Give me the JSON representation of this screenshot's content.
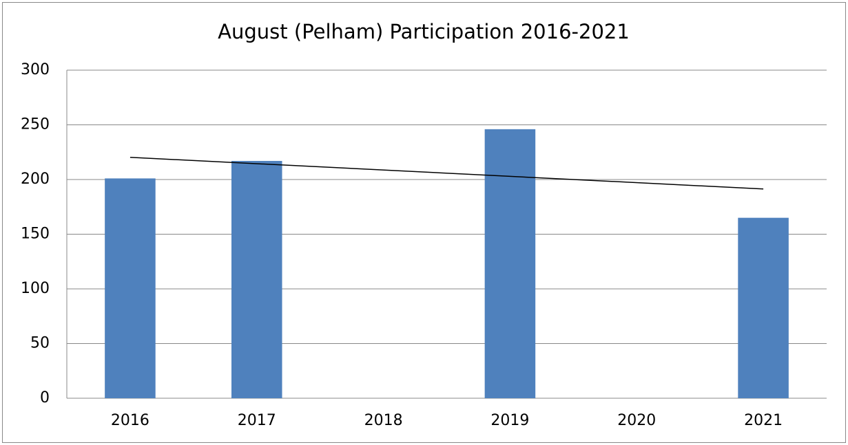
{
  "chart_data": {
    "type": "bar",
    "title": "August (Pelham) Participation 2016-2021",
    "categories": [
      "2016",
      "2017",
      "2018",
      "2019",
      "2020",
      "2021"
    ],
    "values": [
      201,
      217,
      null,
      246,
      null,
      165
    ],
    "color": "#4f81bd",
    "ylim": [
      0,
      300
    ],
    "yticks": [
      0,
      50,
      100,
      150,
      200,
      250,
      300
    ],
    "grid": true,
    "trendline": "linear",
    "trendline_color": "#000000"
  }
}
